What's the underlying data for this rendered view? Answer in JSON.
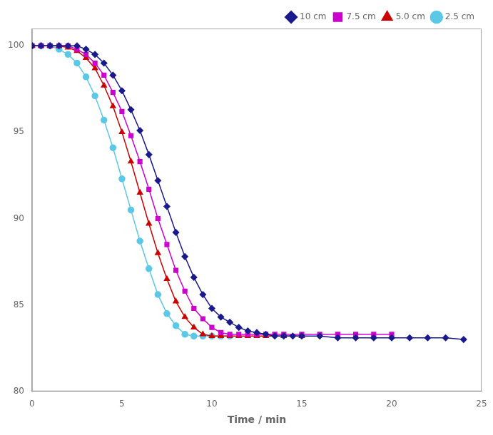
{
  "chart_data": {
    "type": "line",
    "xlabel": "Time / min",
    "xlim": [
      0,
      25
    ],
    "ylim": [
      80,
      101
    ],
    "xticks": [
      0,
      5,
      10,
      15,
      20,
      25
    ],
    "yticks": [
      80,
      85,
      90,
      95,
      100
    ],
    "grid": false,
    "legend": "upper right",
    "series": [
      {
        "name": "10 cm",
        "color": "#1A1A8C",
        "marker": "diamond",
        "x": [
          0,
          0.5,
          1,
          1.5,
          2,
          2.5,
          3,
          3.5,
          4,
          4.5,
          5,
          5.5,
          6,
          6.5,
          7,
          7.5,
          8,
          8.5,
          9,
          9.5,
          10,
          10.5,
          11,
          11.5,
          12,
          12.5,
          13,
          13.5,
          14,
          14.5,
          15,
          16,
          17,
          18,
          19,
          20,
          21,
          22,
          23,
          24
        ],
        "values": [
          100,
          100,
          100,
          100,
          100,
          100,
          99.8,
          99.5,
          99.0,
          98.3,
          97.4,
          96.3,
          95.1,
          93.7,
          92.2,
          90.7,
          89.2,
          87.8,
          86.6,
          85.6,
          84.8,
          84.3,
          84.0,
          83.7,
          83.5,
          83.4,
          83.3,
          83.2,
          83.2,
          83.2,
          83.2,
          83.2,
          83.1,
          83.1,
          83.1,
          83.1,
          83.1,
          83.1,
          83.1,
          83.0
        ]
      },
      {
        "name": "7.5 cm",
        "color": "#CC00CC",
        "marker": "square",
        "x": [
          0,
          0.5,
          1,
          1.5,
          2,
          2.5,
          3,
          3.5,
          4,
          4.5,
          5,
          5.5,
          6,
          6.5,
          7,
          7.5,
          8,
          8.5,
          9,
          9.5,
          10,
          10.5,
          11,
          11.5,
          12,
          12.5,
          13,
          13.5,
          14,
          15,
          16,
          17,
          18,
          19,
          20
        ],
        "values": [
          100,
          100,
          100,
          100,
          100,
          99.8,
          99.5,
          99.0,
          98.3,
          97.3,
          96.2,
          94.8,
          93.3,
          91.7,
          90.0,
          88.5,
          87.0,
          85.8,
          84.8,
          84.2,
          83.7,
          83.4,
          83.3,
          83.3,
          83.3,
          83.3,
          83.3,
          83.3,
          83.3,
          83.3,
          83.3,
          83.3,
          83.3,
          83.3,
          83.3
        ]
      },
      {
        "name": "5.0 cm",
        "color": "#CC0000",
        "marker": "triangle",
        "x": [
          0,
          0.5,
          1,
          1.5,
          2,
          2.5,
          3,
          3.5,
          4,
          4.5,
          5,
          5.5,
          6,
          6.5,
          7,
          7.5,
          8,
          8.5,
          9,
          9.5,
          10,
          10.5,
          11,
          11.5,
          12,
          12.5,
          13,
          14,
          15
        ],
        "values": [
          100,
          100,
          100,
          100,
          99.9,
          99.7,
          99.3,
          98.7,
          97.7,
          96.5,
          95.0,
          93.3,
          91.5,
          89.7,
          88.0,
          86.5,
          85.2,
          84.3,
          83.7,
          83.3,
          83.2,
          83.2,
          83.2,
          83.2,
          83.2,
          83.2,
          83.2,
          83.2,
          83.2
        ]
      },
      {
        "name": "2.5 cm",
        "color": "#5BC8E8",
        "marker": "circle",
        "x": [
          0,
          0.5,
          1,
          1.5,
          2,
          2.5,
          3,
          3.5,
          4,
          4.5,
          5,
          5.5,
          6,
          6.5,
          7,
          7.5,
          8,
          8.5,
          9,
          9.5,
          10,
          10.5,
          11
        ],
        "values": [
          100,
          100,
          100,
          99.8,
          99.5,
          99.0,
          98.2,
          97.1,
          95.7,
          94.1,
          92.3,
          90.5,
          88.7,
          87.1,
          85.6,
          84.5,
          83.8,
          83.3,
          83.2,
          83.2,
          83.2,
          83.2,
          83.2
        ]
      }
    ]
  }
}
